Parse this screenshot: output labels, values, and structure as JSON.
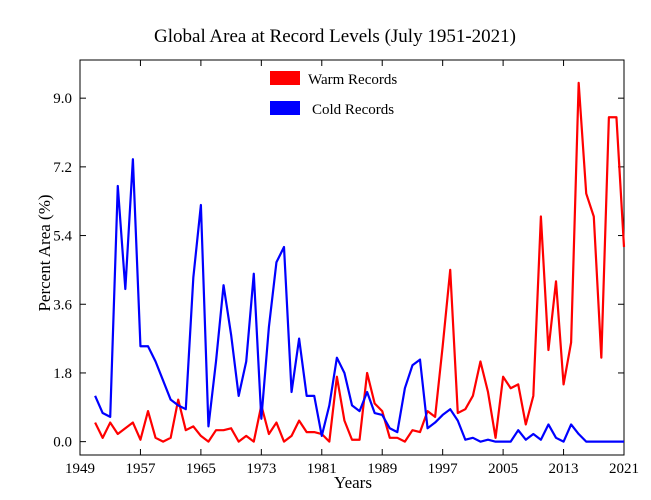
{
  "chart_data": {
    "type": "line",
    "title": "Global Area at Record Levels (July 1951-2021)",
    "xlabel": "Years",
    "ylabel": "Percent Area (%)",
    "xlim": [
      1949,
      2021
    ],
    "ylim": [
      -0.35,
      10.0
    ],
    "xticks": [
      1949,
      1957,
      1965,
      1973,
      1981,
      1989,
      1997,
      2005,
      2013,
      2021
    ],
    "yticks": [
      0.0,
      1.8,
      3.6,
      5.4,
      7.2,
      9.0
    ],
    "ytick_labels": [
      "0.0",
      "1.8",
      "3.6",
      "5.4",
      "7.2",
      "9.0"
    ],
    "legend_position": "top-center",
    "grid": false,
    "years": [
      1951,
      1952,
      1953,
      1954,
      1955,
      1956,
      1957,
      1958,
      1959,
      1960,
      1961,
      1962,
      1963,
      1964,
      1965,
      1966,
      1967,
      1968,
      1969,
      1970,
      1971,
      1972,
      1973,
      1974,
      1975,
      1976,
      1977,
      1978,
      1979,
      1980,
      1981,
      1982,
      1983,
      1984,
      1985,
      1986,
      1987,
      1988,
      1989,
      1990,
      1991,
      1992,
      1993,
      1994,
      1995,
      1996,
      1997,
      1998,
      1999,
      2000,
      2001,
      2002,
      2003,
      2004,
      2005,
      2006,
      2007,
      2008,
      2009,
      2010,
      2011,
      2012,
      2013,
      2014,
      2015,
      2016,
      2017,
      2018,
      2019,
      2020,
      2021
    ],
    "series": [
      {
        "name": "Warm Records",
        "color": "#ff0000",
        "values": [
          0.5,
          0.1,
          0.5,
          0.2,
          0.35,
          0.5,
          0.05,
          0.8,
          0.1,
          0.0,
          0.1,
          1.1,
          0.3,
          0.4,
          0.15,
          0.0,
          0.3,
          0.3,
          0.35,
          0.0,
          0.15,
          0.0,
          0.95,
          0.2,
          0.5,
          0.0,
          0.15,
          0.55,
          0.25,
          0.25,
          0.2,
          0.0,
          1.7,
          0.55,
          0.05,
          0.05,
          1.8,
          1.0,
          0.8,
          0.1,
          0.1,
          0.0,
          0.3,
          0.25,
          0.8,
          0.65,
          2.5,
          4.5,
          0.75,
          0.85,
          1.2,
          2.1,
          1.3,
          0.1,
          1.7,
          1.4,
          1.5,
          0.45,
          1.2,
          5.9,
          2.4,
          4.2,
          1.5,
          2.6,
          9.4,
          6.5,
          5.9,
          2.2,
          8.5,
          8.5,
          5.1
        ]
      },
      {
        "name": "Cold Records",
        "color": "#0000ff",
        "values": [
          1.2,
          0.75,
          0.65,
          6.7,
          4.0,
          7.4,
          2.5,
          2.5,
          2.1,
          1.6,
          1.1,
          0.95,
          0.85,
          4.3,
          6.2,
          0.4,
          2.1,
          4.1,
          2.8,
          1.2,
          2.1,
          4.4,
          0.6,
          3.0,
          4.7,
          5.1,
          1.3,
          2.7,
          1.2,
          1.2,
          0.15,
          0.95,
          2.2,
          1.8,
          0.95,
          0.8,
          1.3,
          0.75,
          0.7,
          0.35,
          0.25,
          1.4,
          2.0,
          2.15,
          0.35,
          0.5,
          0.7,
          0.85,
          0.55,
          0.05,
          0.1,
          0.0,
          0.05,
          0.0,
          0.0,
          0.0,
          0.3,
          0.05,
          0.2,
          0.05,
          0.45,
          0.1,
          0.0,
          0.45,
          0.2,
          0.0,
          0.0,
          0.0,
          0.0,
          0.0,
          0.0
        ]
      }
    ]
  }
}
